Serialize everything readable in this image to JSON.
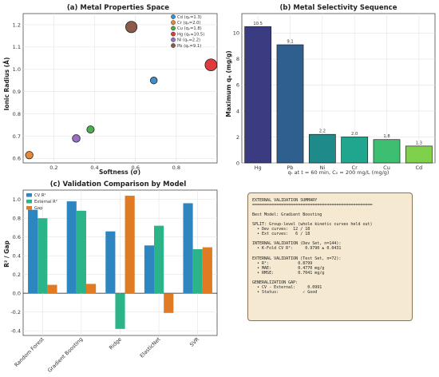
{
  "colors": {
    "panel_d_box_bg": "#f6e9d1",
    "cv": "#2e86c1",
    "ext": "#2bb38a",
    "gap": "#e07b24"
  },
  "chart_data": [
    {
      "type": "scatter",
      "title": "(a) Metal Properties Space",
      "xlabel": "Softness (σ)",
      "ylabel": "Ionic Radius (Å)",
      "xlim": [
        0.05,
        1.0
      ],
      "ylim": [
        0.58,
        1.25
      ],
      "xticks": [
        "0.2",
        "0.4",
        "0.6",
        "0.8"
      ],
      "yticks": [
        "0.6",
        "0.7",
        "0.8",
        "0.9",
        "1.0",
        "1.1",
        "1.2"
      ],
      "legend_position": "top-right",
      "points": [
        {
          "label": "Cd (qₑ=1.3)",
          "x": 0.69,
          "y": 0.95,
          "q": 1.3,
          "color": "#3a8fd0"
        },
        {
          "label": "Cr (qₑ=2.0)",
          "x": 0.08,
          "y": 0.615,
          "q": 2.0,
          "color": "#e8893a"
        },
        {
          "label": "Cu (qₑ=1.8)",
          "x": 0.38,
          "y": 0.73,
          "q": 1.8,
          "color": "#4cae4c"
        },
        {
          "label": "Hg (qₑ=10.5)",
          "x": 0.97,
          "y": 1.02,
          "q": 10.5,
          "color": "#de3c3c"
        },
        {
          "label": "Ni (qₑ=2.2)",
          "x": 0.31,
          "y": 0.69,
          "q": 2.2,
          "color": "#9d6fc4"
        },
        {
          "label": "Pb (qₑ=9.1)",
          "x": 0.58,
          "y": 1.19,
          "q": 9.1,
          "color": "#8b5a4a"
        }
      ]
    },
    {
      "type": "bar",
      "title": "(b) Metal Selectivity Sequence",
      "xlabel": "qₜ at t = 60 min, C₀ = 200 mg/L (mg/g)",
      "ylabel": "Maximum qₑ (mg/g)",
      "ylim": [
        0,
        11.5
      ],
      "yticks": [
        "0",
        "2",
        "4",
        "6",
        "8",
        "10"
      ],
      "categories": [
        "Hg",
        "Pb",
        "Ni",
        "Cr",
        "Cu",
        "Cd"
      ],
      "values": [
        10.5,
        9.1,
        2.2,
        2.0,
        1.8,
        1.3
      ],
      "value_labels": [
        "10.5",
        "9.1",
        "2.2",
        "2.0",
        "1.8",
        "1.3"
      ],
      "colors": [
        "#3b3b82",
        "#2e5f8f",
        "#1e8a8a",
        "#20a58e",
        "#3dbf72",
        "#7fd04a"
      ]
    },
    {
      "type": "bar",
      "title": "(c) Validation Comparison by Model",
      "ylabel": "R² / Gap",
      "ylim": [
        -0.45,
        1.1
      ],
      "yticks": [
        "-0.4",
        "-0.2",
        "0.0",
        "0.2",
        "0.4",
        "0.6",
        "0.8",
        "1.0"
      ],
      "legend_position": "top-left",
      "categories": [
        "Random Forest",
        "Gradient Boosting",
        "Ridge",
        "ElasticNet",
        "SVR"
      ],
      "series": [
        {
          "name": "CV R²",
          "values": [
            0.89,
            0.98,
            0.66,
            0.51,
            0.96
          ]
        },
        {
          "name": "External R²",
          "values": [
            0.8,
            0.88,
            -0.38,
            0.72,
            0.47
          ]
        },
        {
          "name": "Gap",
          "values": [
            0.09,
            0.1,
            1.04,
            -0.21,
            0.49
          ]
        }
      ]
    }
  ],
  "summary": {
    "lines": [
      "EXTERNAL VALIDATION SUMMARY",
      "==================================================",
      "",
      "Best Model: Gradient Boosting",
      "",
      "SPLIT: Group-level (whole kinetic curves held out)",
      "  • Dev curves:  12 / 18",
      "  • Ext curves:   6 / 18",
      "",
      "INTERNAL VALIDATION (Dev Set, n=144):",
      "  • K-Fold CV R²:     0.9790 ± 0.0431",
      "",
      "EXTERNAL VALIDATION (Test Set, n=72):",
      "  • R²:            0.8799",
      "  • MAE:           0.4770 mg/g",
      "  • RMSE:          0.7041 mg/g",
      "",
      "GENERALIZATION GAP:",
      "  • CV - External:     0.0991",
      "  • Status:          ✓ Good"
    ]
  }
}
